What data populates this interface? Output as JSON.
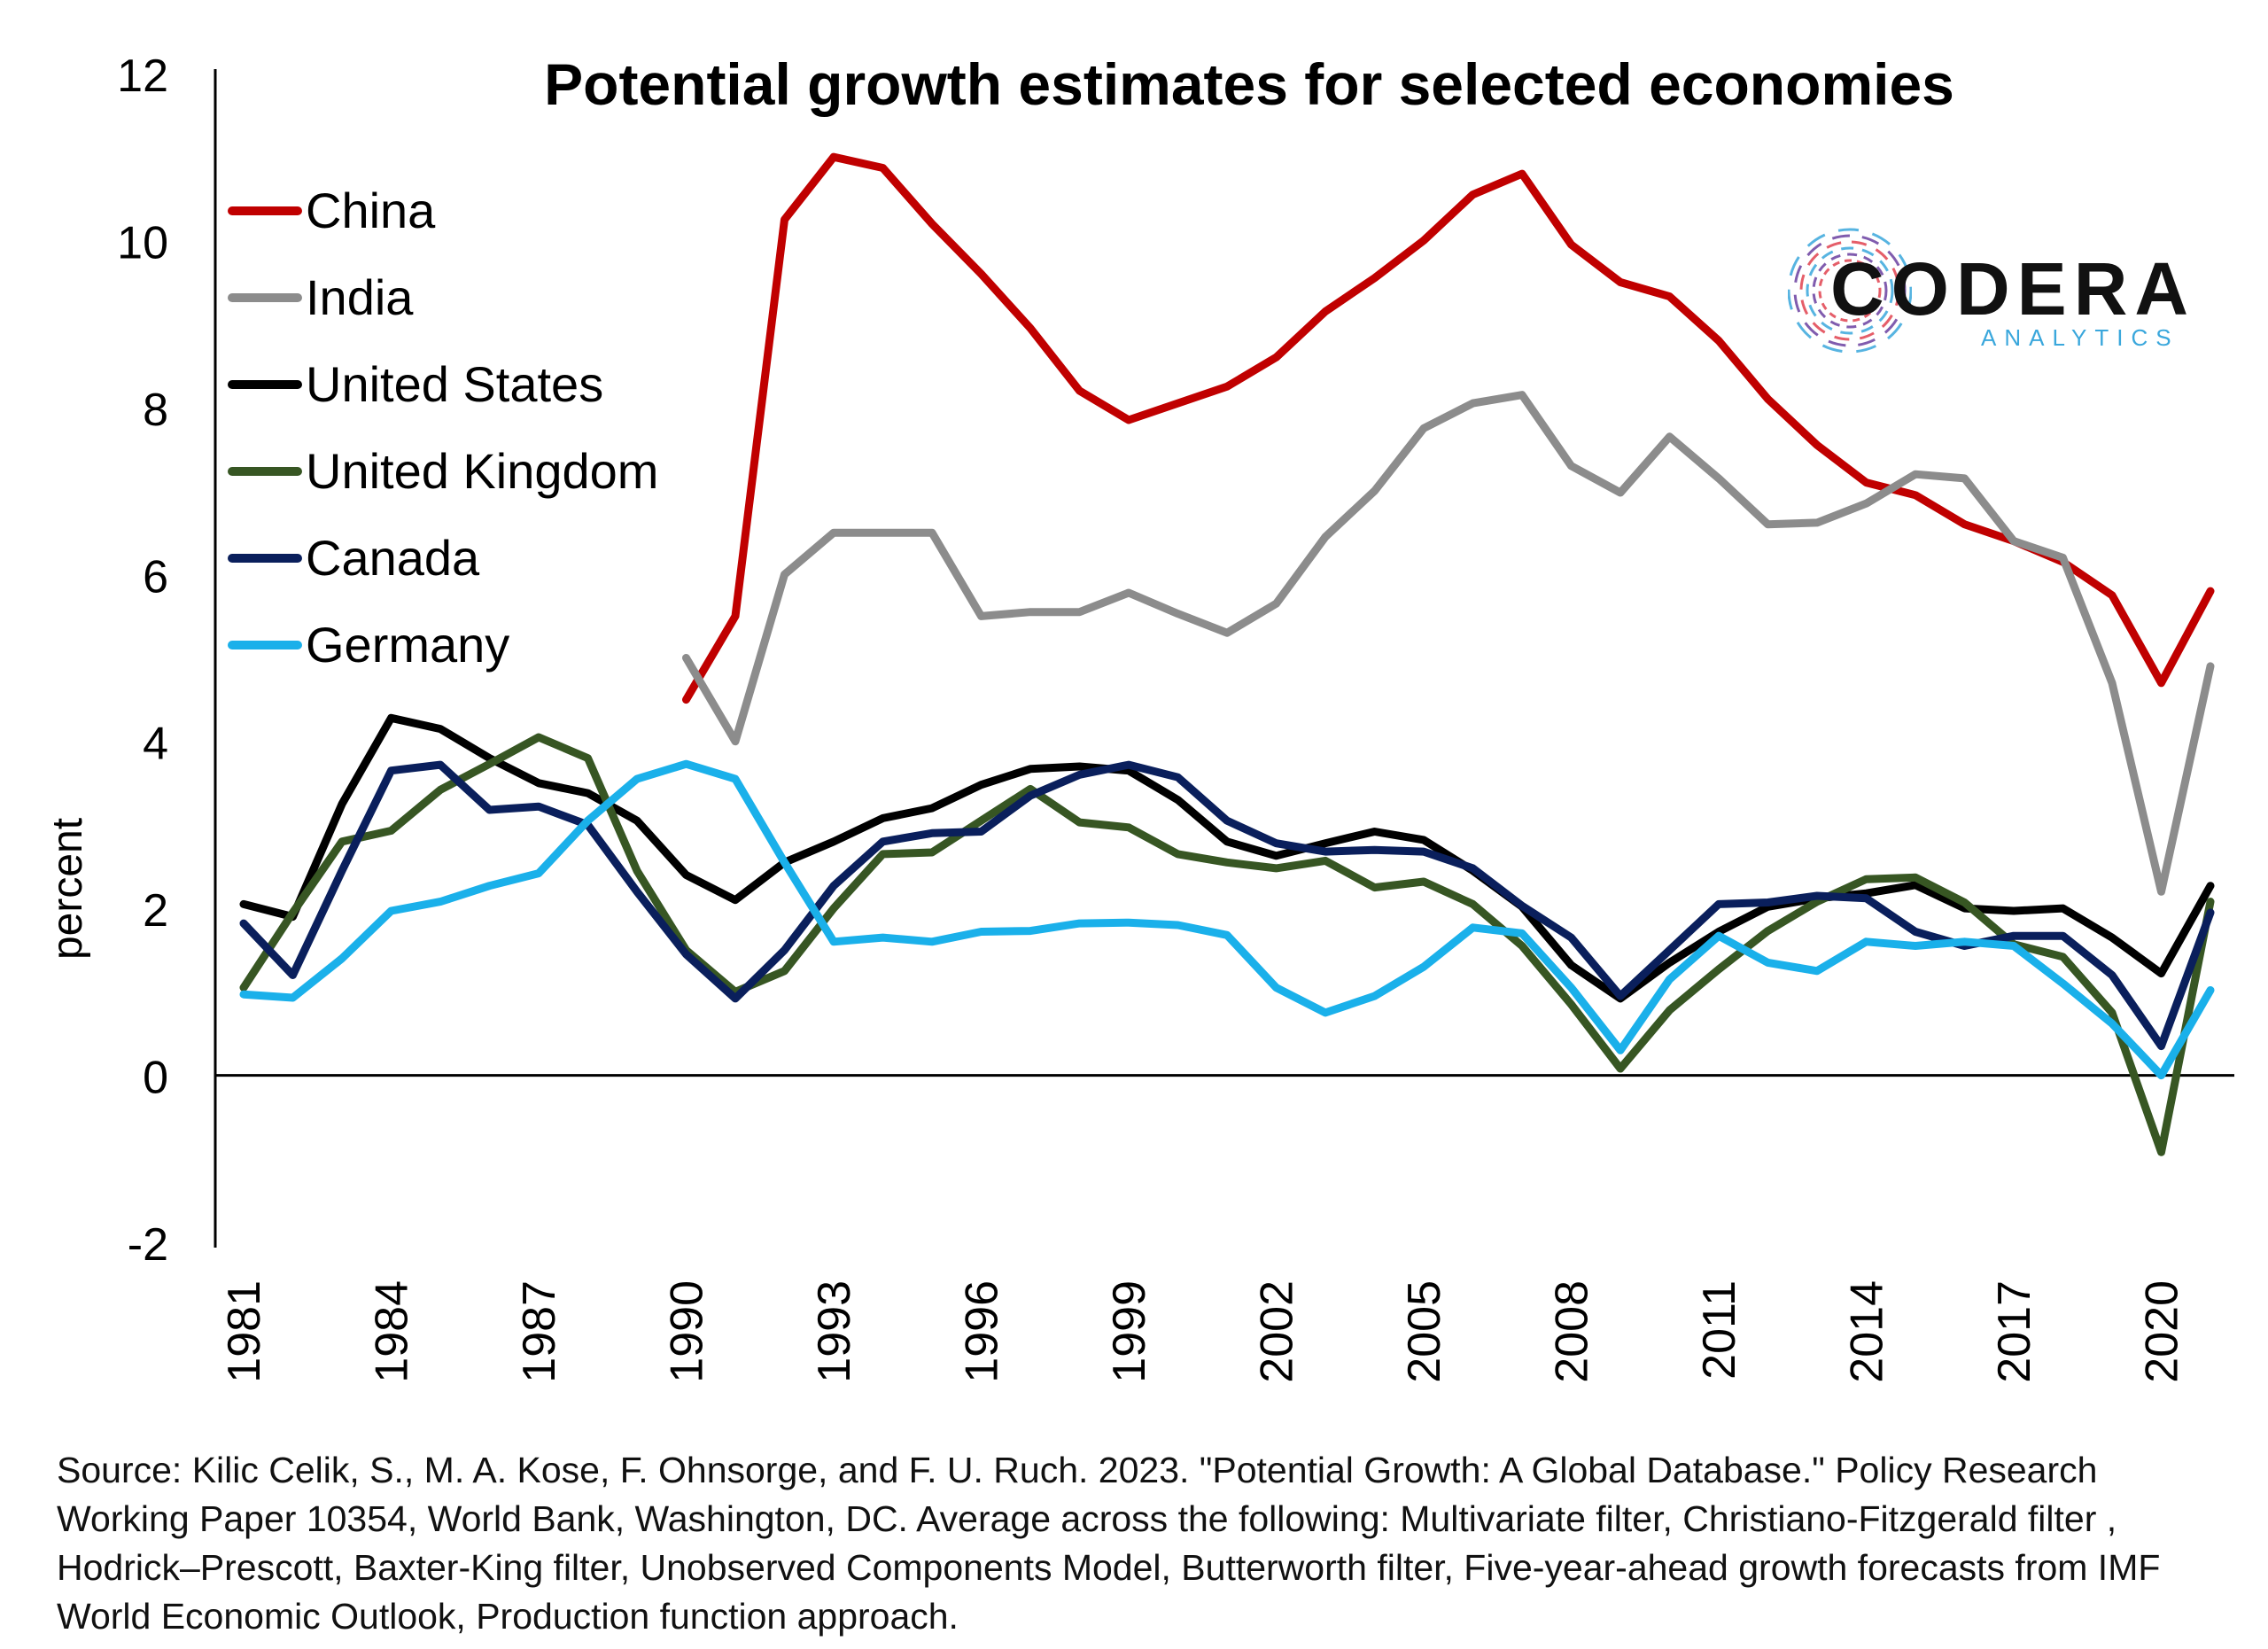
{
  "chart_data": {
    "type": "line",
    "title": "Potential growth estimates for selected economies",
    "xlabel": "",
    "ylabel": "percent",
    "ylim": [
      -2,
      12
    ],
    "yticks": [
      "12",
      "10",
      "8",
      "6",
      "4",
      "2",
      "0",
      "-2"
    ],
    "xticks": [
      "1981",
      "1984",
      "1987",
      "1990",
      "1993",
      "1996",
      "1999",
      "2002",
      "2005",
      "2008",
      "2011",
      "2014",
      "2017",
      "2020"
    ],
    "xlim": [
      1981,
      2021
    ],
    "grid": false,
    "legend_position": "top-left",
    "x": [
      1981,
      1982,
      1983,
      1984,
      1985,
      1986,
      1987,
      1988,
      1989,
      1990,
      1991,
      1992,
      1993,
      1994,
      1995,
      1996,
      1997,
      1998,
      1999,
      2000,
      2001,
      2002,
      2003,
      2004,
      2005,
      2006,
      2007,
      2008,
      2009,
      2010,
      2011,
      2012,
      2013,
      2014,
      2015,
      2016,
      2017,
      2018,
      2019,
      2020,
      2021
    ],
    "series": [
      {
        "name": "China",
        "color": "#c00000",
        "values": [
          null,
          null,
          null,
          null,
          null,
          null,
          null,
          null,
          null,
          4.5,
          5.5,
          10.25,
          11.0,
          10.87,
          10.2,
          9.6,
          8.95,
          8.2,
          7.85,
          8.05,
          8.25,
          8.6,
          9.15,
          9.55,
          10.0,
          10.55,
          10.8,
          9.95,
          9.5,
          9.33,
          8.8,
          8.1,
          7.55,
          7.1,
          6.95,
          6.6,
          6.4,
          6.15,
          5.75,
          4.7,
          5.8
        ]
      },
      {
        "name": "India",
        "color": "#8c8c8c",
        "values": [
          null,
          null,
          null,
          null,
          null,
          null,
          null,
          null,
          null,
          5.0,
          4.0,
          6.0,
          6.5,
          6.5,
          6.5,
          5.5,
          5.55,
          5.55,
          5.78,
          5.53,
          5.3,
          5.65,
          6.45,
          7.0,
          7.75,
          8.05,
          8.15,
          7.3,
          6.98,
          7.65,
          7.15,
          6.6,
          6.62,
          6.85,
          7.2,
          7.15,
          6.4,
          6.2,
          4.7,
          2.2,
          4.9
        ]
      },
      {
        "name": "United States",
        "color": "#000000",
        "values": [
          2.05,
          1.9,
          3.25,
          4.28,
          4.15,
          3.8,
          3.5,
          3.38,
          3.05,
          2.4,
          2.1,
          2.55,
          2.8,
          3.08,
          3.2,
          3.48,
          3.67,
          3.7,
          3.65,
          3.3,
          2.8,
          2.63,
          2.78,
          2.92,
          2.82,
          2.45,
          2.02,
          1.32,
          0.92,
          1.35,
          1.72,
          2.02,
          2.12,
          2.18,
          2.28,
          2.0,
          1.97,
          2.0,
          1.65,
          1.22,
          2.27
        ]
      },
      {
        "name": "United Kingdom",
        "color": "#375623",
        "values": [
          1.05,
          1.95,
          2.8,
          2.93,
          3.42,
          3.73,
          4.05,
          3.8,
          2.45,
          1.5,
          1.0,
          1.25,
          2.0,
          2.65,
          2.67,
          3.05,
          3.43,
          3.03,
          2.97,
          2.65,
          2.55,
          2.48,
          2.57,
          2.25,
          2.32,
          2.05,
          1.55,
          0.85,
          0.08,
          0.78,
          1.27,
          1.73,
          2.08,
          2.35,
          2.37,
          2.07,
          1.57,
          1.42,
          0.75,
          -0.92,
          2.08
        ]
      },
      {
        "name": "Canada",
        "color": "#0a1f5c",
        "values": [
          1.82,
          1.2,
          2.45,
          3.65,
          3.72,
          3.18,
          3.22,
          3.0,
          2.2,
          1.45,
          0.92,
          1.5,
          2.27,
          2.8,
          2.9,
          2.92,
          3.35,
          3.6,
          3.72,
          3.57,
          3.05,
          2.78,
          2.68,
          2.7,
          2.68,
          2.48,
          2.03,
          1.65,
          0.95,
          1.5,
          2.05,
          2.07,
          2.15,
          2.12,
          1.72,
          1.55,
          1.67,
          1.67,
          1.2,
          0.35,
          1.95
        ]
      },
      {
        "name": "Germany",
        "color": "#1ab0ea",
        "values": [
          0.97,
          0.93,
          1.4,
          1.97,
          2.08,
          2.27,
          2.42,
          3.05,
          3.55,
          3.73,
          3.55,
          2.55,
          1.6,
          1.65,
          1.6,
          1.72,
          1.73,
          1.82,
          1.83,
          1.8,
          1.68,
          1.05,
          0.75,
          0.95,
          1.3,
          1.77,
          1.7,
          1.05,
          0.3,
          1.15,
          1.67,
          1.35,
          1.25,
          1.6,
          1.55,
          1.6,
          1.55,
          1.1,
          0.62,
          0.0,
          1.02
        ]
      }
    ]
  },
  "source_note": "Source: Kilic Celik, S., M. A. Kose, F. Ohnsorge, and F. U. Ruch. 2023. \"Potential Growth: A Global Database.\" Policy Research Working Paper 10354, World Bank, Washington, DC. Average across the following: Multivariate filter, Christiano-Fitzgerald filter , Hodrick–Prescott, Baxter-King filter, Unobserved Components Model, Butterworth filter, Five-year-ahead growth forecasts from IMF World Economic Outlook, Production function approach.",
  "logo": {
    "name": "CODERA",
    "sub": "ANALYTICS",
    "colors": [
      "#e0424f",
      "#6a3fa0",
      "#3aa7dc"
    ]
  }
}
